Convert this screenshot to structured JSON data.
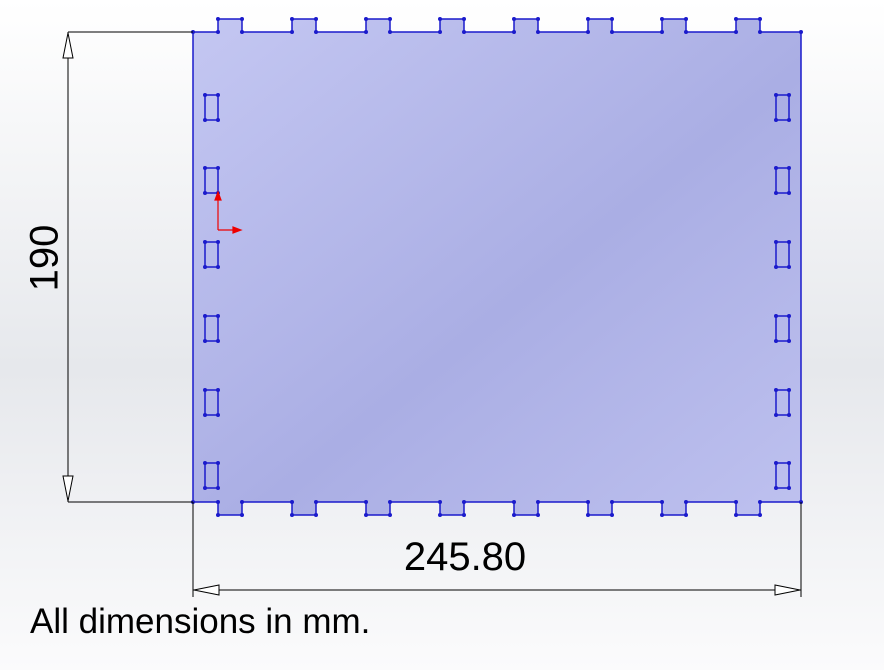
{
  "dimensions": {
    "height": "190",
    "width": "245.80"
  },
  "note": "All dimensions in mm."
}
